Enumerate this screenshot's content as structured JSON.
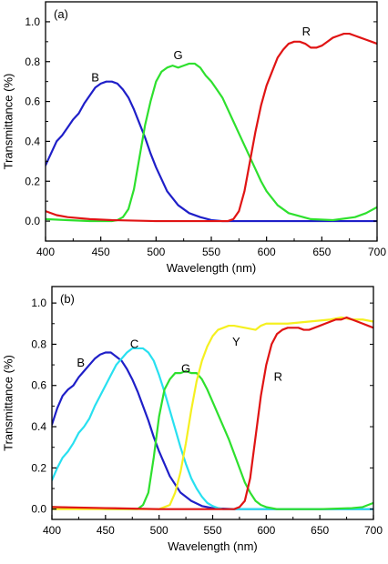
{
  "chart_data": [
    {
      "type": "line",
      "panel_label": "(a)",
      "xlabel": "Wavelength (nm)",
      "ylabel": "Transmittance (%)",
      "xlim": [
        400,
        700
      ],
      "ylim": [
        -0.1,
        1.1
      ],
      "xticks": [
        400,
        450,
        500,
        550,
        600,
        650,
        700
      ],
      "yticks": [
        0.0,
        0.2,
        0.4,
        0.6,
        0.8,
        1.0
      ],
      "xtick_labels": [
        "400",
        "450",
        "500",
        "550",
        "600",
        "650",
        "700"
      ],
      "ytick_labels": [
        "0.0",
        "0.2",
        "0.4",
        "0.6",
        "0.8",
        "1.0"
      ],
      "grid": false,
      "series": [
        {
          "name": "B",
          "color": "#1f1fc8",
          "x": [
            400,
            405,
            410,
            415,
            420,
            425,
            430,
            435,
            440,
            445,
            450,
            455,
            460,
            465,
            470,
            475,
            480,
            485,
            490,
            495,
            500,
            505,
            510,
            520,
            530,
            540,
            550,
            560,
            570,
            580,
            600,
            650,
            700
          ],
          "y": [
            0.28,
            0.34,
            0.4,
            0.43,
            0.47,
            0.51,
            0.54,
            0.59,
            0.63,
            0.67,
            0.69,
            0.7,
            0.7,
            0.69,
            0.66,
            0.62,
            0.56,
            0.49,
            0.42,
            0.34,
            0.27,
            0.21,
            0.15,
            0.08,
            0.04,
            0.02,
            0.005,
            0.0,
            0.0,
            0.0,
            0.0,
            0.0,
            0.0
          ],
          "label_at": [
            445,
            0.72
          ]
        },
        {
          "name": "G",
          "color": "#2ee02e",
          "x": [
            400,
            420,
            440,
            460,
            465,
            470,
            475,
            480,
            485,
            490,
            495,
            500,
            505,
            510,
            515,
            520,
            525,
            530,
            535,
            540,
            545,
            550,
            555,
            560,
            565,
            570,
            575,
            580,
            585,
            590,
            595,
            600,
            610,
            620,
            640,
            660,
            680,
            690,
            700
          ],
          "y": [
            0.01,
            0.005,
            0.0,
            0.0,
            0.005,
            0.02,
            0.06,
            0.16,
            0.32,
            0.48,
            0.6,
            0.7,
            0.75,
            0.77,
            0.78,
            0.77,
            0.78,
            0.79,
            0.79,
            0.77,
            0.73,
            0.7,
            0.66,
            0.62,
            0.56,
            0.5,
            0.44,
            0.38,
            0.32,
            0.26,
            0.2,
            0.15,
            0.08,
            0.04,
            0.01,
            0.005,
            0.02,
            0.04,
            0.07
          ],
          "label_at": [
            520,
            0.83
          ]
        },
        {
          "name": "R",
          "color": "#e01414",
          "x": [
            400,
            410,
            420,
            440,
            460,
            500,
            550,
            565,
            570,
            575,
            580,
            585,
            590,
            595,
            600,
            605,
            610,
            615,
            620,
            625,
            630,
            635,
            640,
            645,
            650,
            655,
            660,
            665,
            670,
            675,
            680,
            685,
            690,
            695,
            700
          ],
          "y": [
            0.05,
            0.03,
            0.02,
            0.01,
            0.005,
            0.0,
            0.0,
            0.0,
            0.01,
            0.05,
            0.15,
            0.3,
            0.45,
            0.58,
            0.68,
            0.75,
            0.82,
            0.86,
            0.89,
            0.9,
            0.9,
            0.89,
            0.87,
            0.87,
            0.88,
            0.9,
            0.92,
            0.93,
            0.94,
            0.94,
            0.93,
            0.92,
            0.91,
            0.9,
            0.89
          ],
          "label_at": [
            636,
            0.95
          ]
        }
      ]
    },
    {
      "type": "line",
      "panel_label": "(b)",
      "xlabel": "Wavelength (nm)",
      "ylabel": "Transmittance (%)",
      "xlim": [
        400,
        700
      ],
      "ylim": [
        -0.05,
        1.08
      ],
      "xticks": [
        400,
        450,
        500,
        550,
        600,
        650,
        700
      ],
      "yticks": [
        0.0,
        0.2,
        0.4,
        0.6,
        0.8,
        1.0
      ],
      "xtick_labels": [
        "400",
        "450",
        "500",
        "550",
        "600",
        "650",
        "700"
      ],
      "ytick_labels": [
        "0.0",
        "0.2",
        "0.4",
        "0.6",
        "0.8",
        "1.0"
      ],
      "grid": false,
      "series": [
        {
          "name": "B",
          "color": "#1f1fc8",
          "x": [
            400,
            405,
            410,
            415,
            420,
            425,
            430,
            435,
            440,
            445,
            450,
            455,
            460,
            465,
            470,
            475,
            480,
            485,
            490,
            495,
            500,
            505,
            510,
            520,
            530,
            540,
            550,
            570,
            600,
            650,
            700
          ],
          "y": [
            0.41,
            0.49,
            0.55,
            0.58,
            0.6,
            0.64,
            0.67,
            0.7,
            0.73,
            0.75,
            0.76,
            0.76,
            0.74,
            0.72,
            0.68,
            0.63,
            0.57,
            0.5,
            0.43,
            0.35,
            0.28,
            0.22,
            0.16,
            0.08,
            0.04,
            0.015,
            0.005,
            0.0,
            0.0,
            0.0,
            0.0
          ],
          "label_at": [
            427,
            0.71
          ]
        },
        {
          "name": "C",
          "color": "#28e0f0",
          "x": [
            400,
            405,
            410,
            415,
            420,
            425,
            430,
            435,
            440,
            445,
            450,
            455,
            460,
            465,
            470,
            475,
            480,
            485,
            490,
            495,
            500,
            505,
            510,
            515,
            520,
            525,
            530,
            535,
            540,
            545,
            550,
            555,
            560,
            570,
            580,
            600,
            650,
            700
          ],
          "y": [
            0.14,
            0.2,
            0.25,
            0.28,
            0.32,
            0.37,
            0.4,
            0.44,
            0.5,
            0.55,
            0.6,
            0.65,
            0.7,
            0.73,
            0.76,
            0.78,
            0.78,
            0.78,
            0.76,
            0.72,
            0.65,
            0.57,
            0.48,
            0.39,
            0.3,
            0.22,
            0.15,
            0.1,
            0.06,
            0.03,
            0.015,
            0.005,
            0.0,
            0.0,
            0.0,
            0.0,
            0.0,
            0.0
          ],
          "label_at": [
            477,
            0.8
          ]
        },
        {
          "name": "G",
          "color": "#2ee02e",
          "x": [
            400,
            450,
            480,
            485,
            490,
            495,
            500,
            505,
            510,
            515,
            520,
            525,
            530,
            535,
            540,
            545,
            550,
            555,
            560,
            565,
            570,
            575,
            580,
            585,
            590,
            595,
            600,
            610,
            620,
            650,
            680,
            690,
            700
          ],
          "y": [
            0.01,
            0.0,
            0.0,
            0.02,
            0.08,
            0.25,
            0.45,
            0.58,
            0.63,
            0.66,
            0.66,
            0.67,
            0.66,
            0.66,
            0.63,
            0.58,
            0.52,
            0.46,
            0.4,
            0.34,
            0.27,
            0.2,
            0.13,
            0.08,
            0.04,
            0.02,
            0.01,
            0.0,
            0.0,
            0.0,
            0.005,
            0.01,
            0.03
          ],
          "label_at": [
            525,
            0.68
          ]
        },
        {
          "name": "Y",
          "color": "#f5f020",
          "x": [
            400,
            450,
            500,
            510,
            515,
            520,
            525,
            530,
            535,
            540,
            545,
            550,
            555,
            560,
            565,
            570,
            580,
            590,
            595,
            600,
            620,
            640,
            660,
            670,
            680,
            690,
            700
          ],
          "y": [
            0.0,
            0.0,
            0.0,
            0.02,
            0.08,
            0.18,
            0.32,
            0.48,
            0.62,
            0.72,
            0.79,
            0.84,
            0.87,
            0.88,
            0.89,
            0.89,
            0.88,
            0.87,
            0.89,
            0.9,
            0.9,
            0.91,
            0.92,
            0.93,
            0.92,
            0.92,
            0.91
          ],
          "label_at": [
            572,
            0.81
          ]
        },
        {
          "name": "R",
          "color": "#e01414",
          "x": [
            400,
            450,
            500,
            550,
            570,
            575,
            580,
            585,
            590,
            595,
            600,
            605,
            610,
            615,
            620,
            625,
            630,
            635,
            640,
            645,
            650,
            655,
            660,
            665,
            670,
            675,
            680,
            685,
            690,
            695,
            700
          ],
          "y": [
            0.01,
            0.005,
            0.0,
            0.0,
            0.0,
            0.01,
            0.04,
            0.15,
            0.35,
            0.55,
            0.7,
            0.8,
            0.85,
            0.87,
            0.88,
            0.88,
            0.88,
            0.87,
            0.87,
            0.88,
            0.89,
            0.9,
            0.91,
            0.92,
            0.92,
            0.93,
            0.92,
            0.91,
            0.9,
            0.89,
            0.88
          ],
          "label_at": [
            611,
            0.64
          ]
        }
      ]
    }
  ]
}
